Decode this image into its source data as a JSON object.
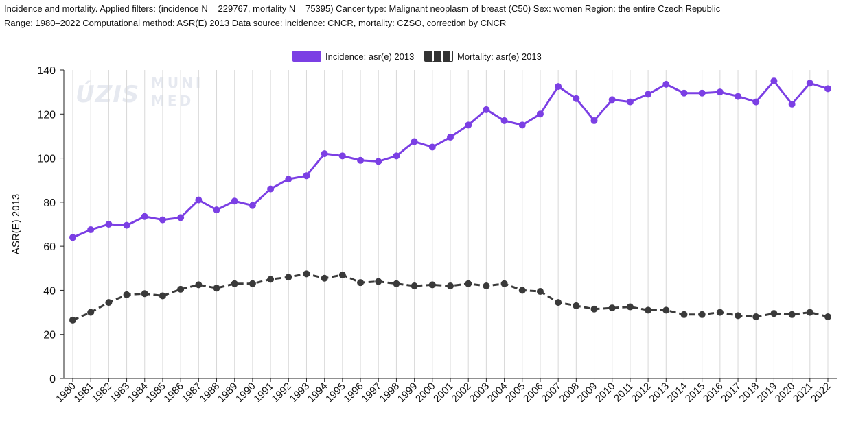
{
  "header": {
    "line1": "Incidence and mortality. Applied filters: (incidence N = 229767, mortality N = 75395) Cancer type: Malignant neoplasm of breast (C50) Sex: women Region: the entire Czech Republic",
    "line2": "Range: 1980–2022 Computational method: ASR(E) 2013 Data source: incidence: CNCR, mortality: CZSO, correction by CNCR"
  },
  "watermark": {
    "logo1": "ÚZIS",
    "logo2_line1": "MUNI",
    "logo2_line2": "MED"
  },
  "legend": {
    "incidence_label": "Incidence: asr(e) 2013",
    "mortality_label": "Mortality: asr(e) 2013"
  },
  "colors": {
    "incidence": "#7b3fe4",
    "mortality": "#3a3a3a",
    "axis": "#222222",
    "grid": "#d8d8d8"
  },
  "chart_data": {
    "type": "line",
    "title": "",
    "xlabel": "",
    "ylabel": "ASR(E) 2013",
    "ylim": [
      0,
      140
    ],
    "yticks": [
      0,
      20,
      40,
      60,
      80,
      100,
      120,
      140
    ],
    "legend_position": "top",
    "grid": "vertical",
    "x": [
      "1980",
      "1981",
      "1982",
      "1983",
      "1984",
      "1985",
      "1986",
      "1987",
      "1988",
      "1989",
      "1990",
      "1991",
      "1992",
      "1993",
      "1994",
      "1995",
      "1996",
      "1997",
      "1998",
      "1999",
      "2000",
      "2001",
      "2002",
      "2003",
      "2004",
      "2005",
      "2006",
      "2007",
      "2008",
      "2009",
      "2010",
      "2011",
      "2012",
      "2013",
      "2014",
      "2015",
      "2016",
      "2017",
      "2018",
      "2019",
      "2020",
      "2021",
      "2022"
    ],
    "series": [
      {
        "name": "Incidence: asr(e) 2013",
        "style": "solid",
        "color": "#7b3fe4",
        "values": [
          64,
          67.5,
          70,
          69.5,
          73.5,
          72,
          73,
          81,
          76.5,
          80.5,
          78.5,
          86,
          90.5,
          92,
          102,
          101,
          99,
          98.5,
          101,
          107.5,
          105,
          109.5,
          115,
          122,
          117,
          115,
          120,
          132.5,
          127,
          117,
          126.5,
          125.5,
          129,
          133.5,
          129.5,
          129.5,
          130,
          128,
          125.5,
          135,
          124.5,
          134,
          131.5
        ]
      },
      {
        "name": "Mortality: asr(e) 2013",
        "style": "dashed",
        "color": "#3a3a3a",
        "values": [
          26.5,
          30,
          34.5,
          38,
          38.5,
          37.5,
          40.5,
          42.5,
          41,
          43,
          43,
          45,
          46,
          47.5,
          45.5,
          47,
          43.5,
          44,
          43,
          42,
          42.5,
          42,
          43,
          42,
          43,
          40,
          39.5,
          34.5,
          33,
          31.5,
          32,
          32.5,
          31,
          31,
          29,
          29,
          30,
          28.5,
          28,
          29.5,
          29,
          30,
          28
        ]
      }
    ]
  }
}
